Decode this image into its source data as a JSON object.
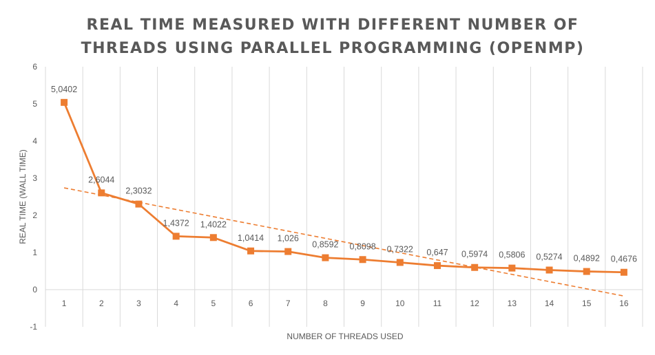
{
  "chart_data": {
    "type": "line",
    "title_lines": [
      "REAL TIME MEASURED WITH DIFFERENT NUMBER OF",
      "THREADS USING PARALLEL PROGRAMMING (OPENMP)"
    ],
    "xlabel": "NUMBER OF THREADS USED",
    "ylabel": "REAL TIME (WALL TIME)",
    "ylim": [
      -1,
      6
    ],
    "y_ticks": [
      "-1",
      "0",
      "1",
      "2",
      "3",
      "4",
      "5",
      "6"
    ],
    "y_tick_values": [
      -1,
      0,
      1,
      2,
      3,
      4,
      5,
      6
    ],
    "categories": [
      "1",
      "2",
      "3",
      "4",
      "5",
      "6",
      "7",
      "8",
      "9",
      "10",
      "11",
      "12",
      "13",
      "14",
      "15",
      "16"
    ],
    "series": [
      {
        "values": [
          5.0402,
          2.6044,
          2.3032,
          1.4372,
          1.4022,
          1.0414,
          1.026,
          0.8592,
          0.8098,
          0.7322,
          0.647,
          0.5974,
          0.5806,
          0.5274,
          0.4892,
          0.4676
        ],
        "labels": [
          "5,0402",
          "2,6044",
          "2,3032",
          "1,4372",
          "1,4022",
          "1,0414",
          "1,026",
          "0,8592",
          "0,8098",
          "0,7322",
          "0,647",
          "0,5974",
          "0,5806",
          "0,5274",
          "0,4892",
          "0,4676"
        ],
        "color": "#ED7D31",
        "marker": "square"
      }
    ],
    "trendline": {
      "type": "linear",
      "style": "dashed",
      "color": "#ED7D31"
    },
    "grid": {
      "vertical": true,
      "horizontal": false,
      "color": "#D9D9D9"
    },
    "legend": "none"
  }
}
